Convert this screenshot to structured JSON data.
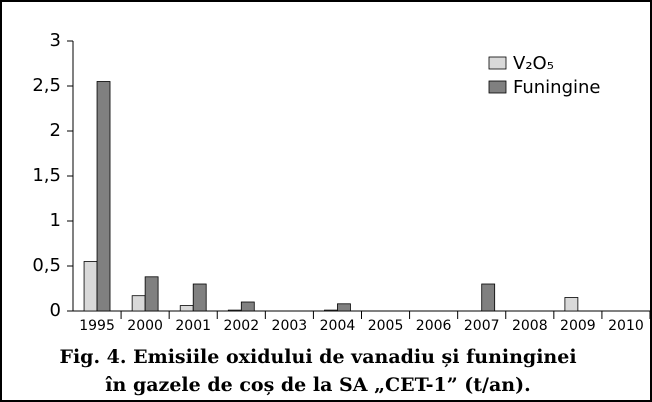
{
  "chart_data": {
    "type": "bar",
    "title_lines": [
      "Fig. 4. Emisiile oxidului de vanadiu și funinginei",
      "în gazele de coș de la SA „CET-1” (t/an)."
    ],
    "categories": [
      "1995",
      "2000",
      "2001",
      "2002",
      "2003",
      "2004",
      "2005",
      "2006",
      "2007",
      "2008",
      "2009",
      "2010"
    ],
    "series": [
      {
        "name": "V₂O₅",
        "color": "#d9d9d9",
        "values": [
          0.55,
          0.17,
          0.06,
          0.01,
          0,
          0.01,
          0,
          0,
          0,
          0,
          0.15,
          0
        ]
      },
      {
        "name": "Funingine",
        "color": "#808080",
        "values": [
          2.55,
          0.38,
          0.3,
          0.1,
          0,
          0.08,
          0,
          0,
          0.3,
          0,
          0,
          0
        ]
      }
    ],
    "ylim": [
      0,
      3
    ],
    "yticks": [
      0,
      {
        "value": 0.5,
        "label": "0,5"
      },
      1,
      {
        "value": 1.5,
        "label": "1,5"
      },
      2,
      {
        "value": 2.5,
        "label": "2,5"
      },
      3
    ],
    "legend": "top-right"
  }
}
